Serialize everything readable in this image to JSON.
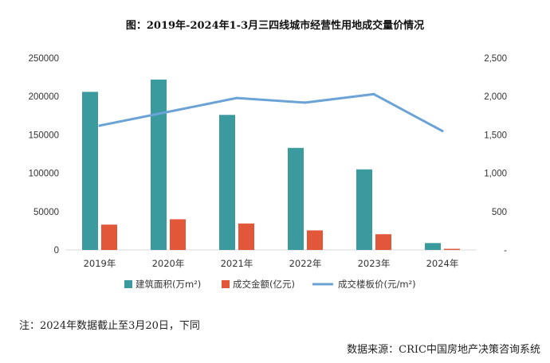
{
  "chart_data": {
    "type": "bar",
    "title": "图：2019年-2024年1-3月三四线城市经营性用地成交量价情况",
    "categories": [
      "2019年",
      "2020年",
      "2021年",
      "2022年",
      "2023年",
      "2024年"
    ],
    "series": [
      {
        "name": "建筑面积(万m²)",
        "kind": "bar",
        "axis": "left",
        "color": "#3a9a9e",
        "values": [
          206000,
          222000,
          176000,
          133000,
          105000,
          9000
        ]
      },
      {
        "name": "成交金额(亿元)",
        "kind": "bar",
        "axis": "left",
        "color": "#e2573a",
        "values": [
          33000,
          40000,
          34500,
          25500,
          20500,
          1500
        ]
      },
      {
        "name": "成交楼板价(元/m²)",
        "kind": "line",
        "axis": "right",
        "color": "#6ba3d6",
        "values": [
          1620,
          1800,
          1980,
          1920,
          2030,
          1550
        ]
      }
    ],
    "left_axis": {
      "ylim": [
        0,
        250000
      ],
      "ticks": [
        "0",
        "50000",
        "100000",
        "150000",
        "200000",
        "250000"
      ]
    },
    "right_axis": {
      "ylim": [
        0,
        2500
      ],
      "ticks": [
        "-",
        "500",
        "1,000",
        "1,500",
        "2,000",
        "2,500"
      ]
    },
    "grid": false,
    "legend_position": "bottom"
  },
  "note": "注：2024年数据截止至3月20日，下同",
  "source": "数据来源：CRIC中国房地产决策咨询系统"
}
